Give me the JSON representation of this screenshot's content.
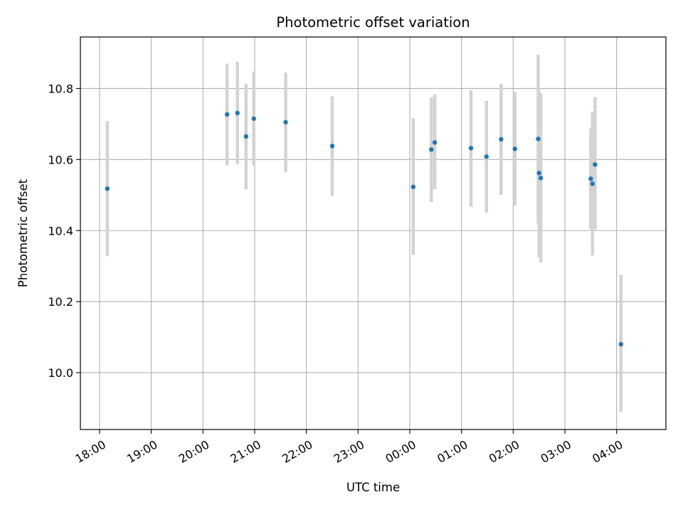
{
  "chart_data": {
    "type": "scatter",
    "title": "Photometric offset variation",
    "xlabel": "UTC time",
    "ylabel": "Photometric offset",
    "x_unit": "hours",
    "xlim": [
      "18:00",
      "04:35"
    ],
    "ylim": [
      9.84,
      10.945
    ],
    "grid": true,
    "x_ticks": [
      "18:00",
      "19:00",
      "20:00",
      "21:00",
      "22:00",
      "23:00",
      "00:00",
      "01:00",
      "02:00",
      "03:00",
      "04:00"
    ],
    "y_ticks": [
      "10.0",
      "10.2",
      "10.4",
      "10.6",
      "10.8"
    ],
    "colors": {
      "points": "#1f77b4",
      "errorbars": "#d3d3d3",
      "grid": "#b0b0b0"
    },
    "series": [
      {
        "points": [
          {
            "x": "18:09",
            "y": 10.518,
            "lo": 10.328,
            "hi": 10.708
          },
          {
            "x": "20:28",
            "y": 10.727,
            "lo": 10.583,
            "hi": 10.87
          },
          {
            "x": "20:40",
            "y": 10.731,
            "lo": 10.587,
            "hi": 10.875
          },
          {
            "x": "20:50",
            "y": 10.665,
            "lo": 10.517,
            "hi": 10.813
          },
          {
            "x": "20:59",
            "y": 10.715,
            "lo": 10.583,
            "hi": 10.848
          },
          {
            "x": "21:36",
            "y": 10.705,
            "lo": 10.565,
            "hi": 10.845
          },
          {
            "x": "22:30",
            "y": 10.638,
            "lo": 10.498,
            "hi": 10.778
          },
          {
            "x": "00:04",
            "y": 10.523,
            "lo": 10.332,
            "hi": 10.716
          },
          {
            "x": "00:25",
            "y": 10.628,
            "lo": 10.48,
            "hi": 10.775
          },
          {
            "x": "00:29",
            "y": 10.648,
            "lo": 10.517,
            "hi": 10.783
          },
          {
            "x": "01:11",
            "y": 10.632,
            "lo": 10.467,
            "hi": 10.795
          },
          {
            "x": "01:29",
            "y": 10.608,
            "lo": 10.451,
            "hi": 10.765
          },
          {
            "x": "01:46",
            "y": 10.657,
            "lo": 10.5,
            "hi": 10.813
          },
          {
            "x": "02:02",
            "y": 10.63,
            "lo": 10.47,
            "hi": 10.79
          },
          {
            "x": "02:29",
            "y": 10.658,
            "lo": 10.42,
            "hi": 10.895
          },
          {
            "x": "02:30",
            "y": 10.562,
            "lo": 10.325,
            "hi": 10.796
          },
          {
            "x": "02:32",
            "y": 10.548,
            "lo": 10.31,
            "hi": 10.786
          },
          {
            "x": "03:30",
            "y": 10.546,
            "lo": 10.405,
            "hi": 10.688
          },
          {
            "x": "03:32",
            "y": 10.532,
            "lo": 10.33,
            "hi": 10.735
          },
          {
            "x": "03:35",
            "y": 10.586,
            "lo": 10.403,
            "hi": 10.775
          },
          {
            "x": "04:05",
            "y": 10.08,
            "lo": 9.89,
            "hi": 10.275
          }
        ]
      }
    ]
  }
}
